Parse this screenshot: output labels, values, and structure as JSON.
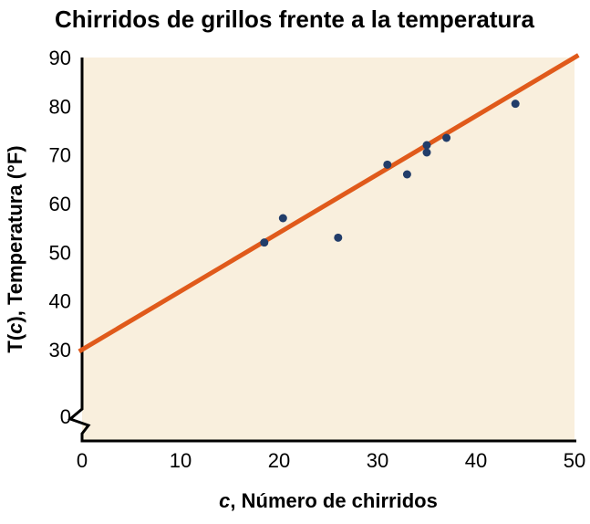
{
  "chart_data": {
    "type": "scatter",
    "title": "Chirridos de grillos frente a la temperatura",
    "xlabel": "c, Número de chirridos",
    "ylabel": "T(c), Temperatura (°F)",
    "xlabel_parts": {
      "italic": "c",
      "rest": ", Número de chirridos"
    },
    "ylabel_parts": {
      "pre": "T(",
      "italic": "c",
      "post": "), Temperatura (°F)"
    },
    "x_ticks": [
      0,
      10,
      20,
      30,
      40,
      50
    ],
    "y_ticks": [
      0,
      30,
      40,
      50,
      60,
      70,
      80,
      90
    ],
    "xlim": [
      0,
      50
    ],
    "ylim_displayed": [
      30,
      90
    ],
    "y_axis_break": true,
    "grid": false,
    "legend": false,
    "points": [
      [
        18.5,
        52
      ],
      [
        20.4,
        57
      ],
      [
        26,
        53
      ],
      [
        31,
        68
      ],
      [
        33,
        66
      ],
      [
        35,
        70.5
      ],
      [
        35,
        72
      ],
      [
        37,
        73.5
      ],
      [
        44,
        80.5
      ]
    ],
    "trend_line": {
      "slope": 1.2,
      "intercept": 30,
      "x_start": 0,
      "x_end": 50
    },
    "colors": {
      "plot_background": "#f9efdd",
      "trend_line": "#e05a1b",
      "points": "#223d6a",
      "axis": "#000000",
      "text": "#000000"
    }
  }
}
